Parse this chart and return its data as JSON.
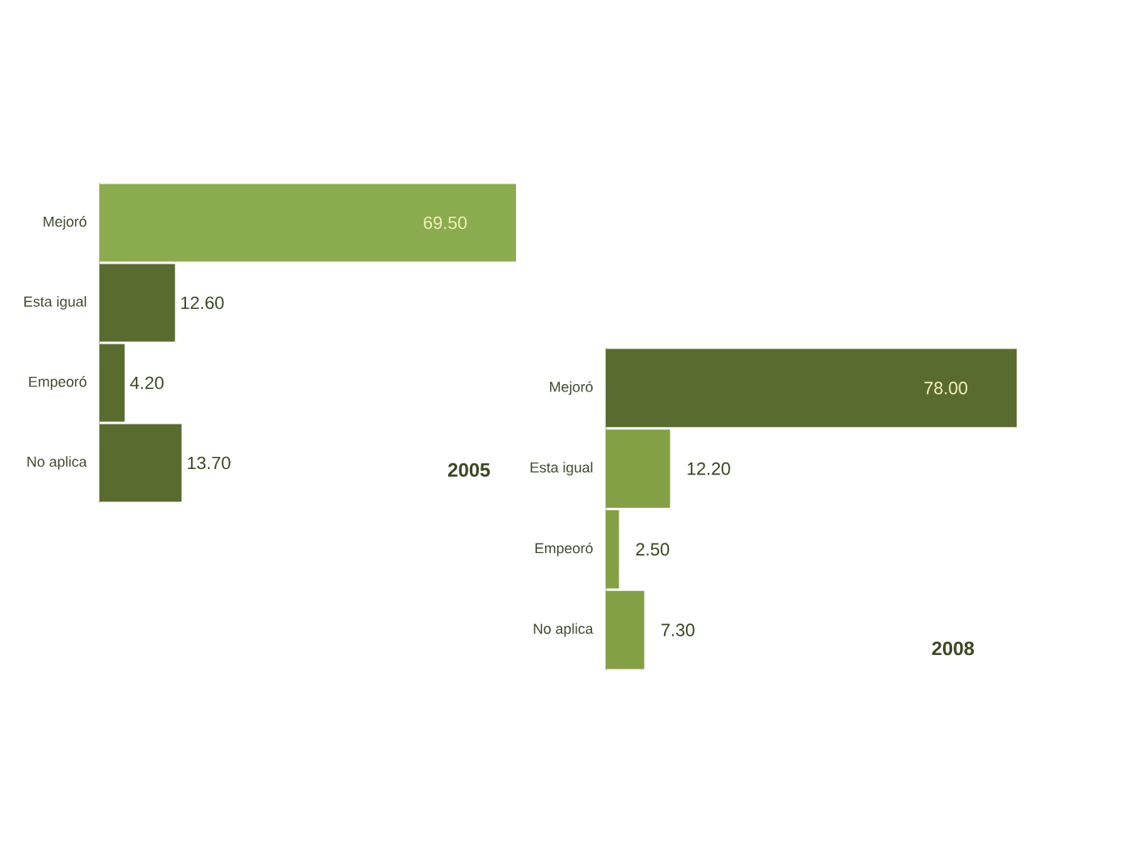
{
  "chart_data": [
    {
      "type": "bar",
      "orientation": "horizontal",
      "title": "2005",
      "categories": [
        "Mejoró",
        "Esta igual",
        "Empeoró",
        "No aplica"
      ],
      "values": [
        69.5,
        12.6,
        4.2,
        13.7
      ],
      "value_labels": [
        "69.50",
        "12.60",
        "4.20",
        "13.70"
      ],
      "colors": [
        "#8bab4f",
        "#5a6b30",
        "#5a6b30",
        "#5a6b30"
      ],
      "tick_labels": "y"
    },
    {
      "type": "bar",
      "orientation": "horizontal",
      "title": "2008",
      "categories": [
        "Mejoró",
        "Esta igual",
        "Empeoró",
        "No aplica"
      ],
      "values": [
        78.0,
        12.2,
        2.5,
        7.3
      ],
      "value_labels": [
        "78.00",
        "12.20",
        "2.50",
        "7.30"
      ],
      "colors": [
        "#5a6b30",
        "#84a045",
        "#84a045",
        "#84a045"
      ],
      "tick_labels": "y"
    }
  ]
}
